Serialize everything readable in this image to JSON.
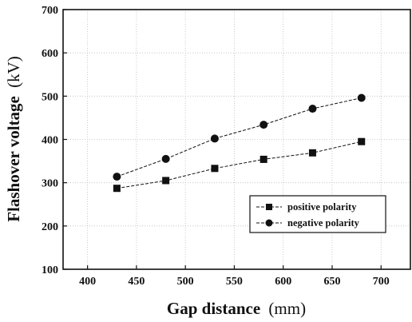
{
  "chart_data": {
    "type": "line",
    "xlabel_main": "Gap distance",
    "xlabel_unit": "(mm)",
    "ylabel_main": "Flashover voltage",
    "ylabel_unit": "(kV)",
    "xlim": [
      375,
      730
    ],
    "ylim": [
      100,
      700
    ],
    "xticks": [
      400,
      450,
      500,
      550,
      600,
      650,
      700
    ],
    "yticks": [
      100,
      200,
      300,
      400,
      500,
      600,
      700
    ],
    "grid": true,
    "legend_position": "lower-right",
    "x": [
      430,
      480,
      530,
      580,
      630,
      680
    ],
    "series": [
      {
        "name": "positive polarity",
        "marker": "square",
        "color": "#111111",
        "values": [
          287,
          305,
          333,
          354,
          369,
          395
        ]
      },
      {
        "name": "negative polarity",
        "marker": "circle",
        "color": "#111111",
        "values": [
          314,
          355,
          402,
          434,
          471,
          496
        ]
      }
    ]
  }
}
